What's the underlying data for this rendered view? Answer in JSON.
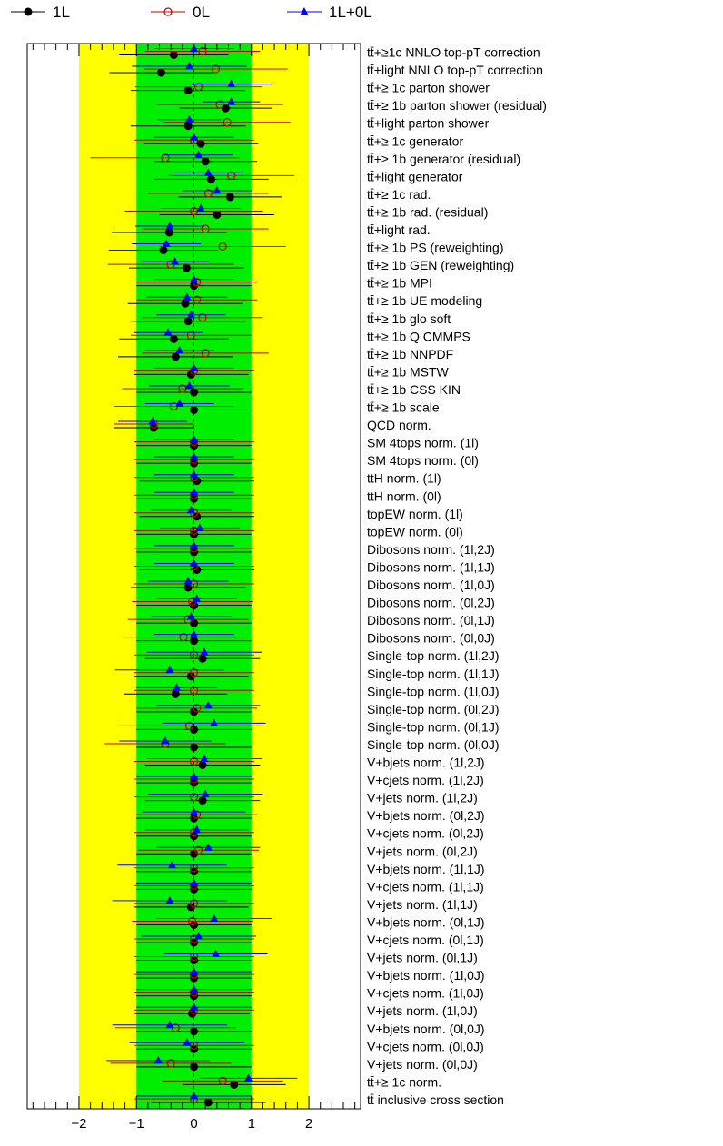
{
  "chart_data": {
    "type": "scatter",
    "title": "",
    "xlabel": "",
    "ylabel": "",
    "xlim": [
      -2.9,
      2.9
    ],
    "x_ticks": [
      -2,
      -1,
      0,
      1,
      2
    ],
    "x_tick_labels": [
      "−2",
      "−1",
      "0",
      "1",
      "2"
    ],
    "grid": false,
    "bands": [
      {
        "name": "±2σ",
        "range": [
          -2,
          2
        ],
        "color": "#ffff00"
      },
      {
        "name": "±1σ",
        "range": [
          -1,
          1
        ],
        "color": "#00ee00"
      }
    ],
    "legend": {
      "placement": "top",
      "entries": [
        "1L",
        "0L",
        "1L+0L"
      ]
    },
    "categories": [
      "tt̄+≥1c NNLO top-pT correction",
      "tt̄+light NNLO top-pT correction",
      "tt̄+≥ 1c parton shower",
      "tt̄+≥ 1b parton shower (residual)",
      "tt̄+light parton shower",
      "tt̄+≥ 1c generator",
      "tt̄+≥ 1b generator (residual)",
      "tt̄+light generator",
      "tt̄+≥ 1c rad.",
      "tt̄+≥ 1b rad. (residual)",
      "tt̄+light rad.",
      "tt̄+≥ 1b PS (reweighting)",
      "tt̄+≥ 1b GEN (reweighting)",
      "tt̄+≥ 1b MPI",
      "tt̄+≥ 1b UE modeling",
      "tt̄+≥ 1b glo soft",
      "tt̄+≥ 1b Q CMMPS",
      "tt̄+≥ 1b NNPDF",
      "tt̄+≥ 1b MSTW",
      "tt̄+≥ 1b CSS KIN",
      "tt̄+≥ 1b scale",
      "QCD norm.",
      "SM 4tops norm. (1l)",
      "SM 4tops norm. (0l)",
      "ttH norm. (1l)",
      "ttH norm. (0l)",
      "topEW norm. (1l)",
      "topEW norm. (0l)",
      "Dibosons norm. (1l,2J)",
      "Dibosons norm. (1l,1J)",
      "Dibosons norm. (1l,0J)",
      "Dibosons norm. (0l,2J)",
      "Dibosons norm. (0l,1J)",
      "Dibosons norm. (0l,0J)",
      "Single-top norm. (1l,2J)",
      "Single-top norm. (1l,1J)",
      "Single-top norm. (1l,0J)",
      "Single-top norm. (0l,2J)",
      "Single-top norm. (0l,1J)",
      "Single-top norm. (0l,0J)",
      "V+bjets norm. (1l,2J)",
      "V+cjets norm. (1l,2J)",
      "V+jets norm. (1l,2J)",
      "V+bjets norm. (0l,2J)",
      "V+cjets norm. (0l,2J)",
      "V+jets norm. (0l,2J)",
      "V+bjets norm. (1l,1J)",
      "V+cjets norm. (1l,1J)",
      "V+jets norm. (1l,1J)",
      "V+bjets norm. (0l,1J)",
      "V+cjets norm. (0l,1J)",
      "V+jets norm. (0l,1J)",
      "V+bjets norm. (1l,0J)",
      "V+cjets norm. (1l,0J)",
      "V+jets norm. (1l,0J)",
      "V+bjets norm. (0l,0J)",
      "V+cjets norm. (0l,0J)",
      "V+jets norm. (0l,0J)",
      "tt̄+≥ 1c norm.",
      "tt̄ inclusive cross section"
    ],
    "series": [
      {
        "name": "1L",
        "marker": "filled-circle",
        "color": "#000000",
        "values": [
          -0.35,
          -0.57,
          -0.1,
          0.55,
          -0.1,
          0.12,
          0.2,
          0.3,
          0.63,
          0.4,
          -0.43,
          -0.53,
          -0.13,
          0.0,
          -0.15,
          -0.1,
          -0.35,
          -0.32,
          -0.05,
          0.0,
          0.0,
          -0.7,
          0.0,
          0.0,
          0.05,
          0.0,
          0.05,
          0.0,
          0.0,
          0.05,
          -0.1,
          0.0,
          0.0,
          0.0,
          0.15,
          -0.05,
          -0.32,
          0.0,
          0.0,
          0.0,
          0.15,
          0.0,
          0.15,
          0.0,
          0.0,
          0.0,
          0.0,
          0.0,
          -0.05,
          0.0,
          0.0,
          0.0,
          0.0,
          0.0,
          -0.03,
          0.0,
          0.0,
          0.0,
          0.7,
          0.25
        ],
        "errors": [
          0.95,
          0.9,
          1.0,
          0.8,
          1.0,
          1.0,
          0.9,
          1.0,
          0.9,
          1.0,
          1.0,
          0.95,
          1.0,
          1.0,
          1.0,
          1.0,
          0.95,
          1.0,
          1.0,
          1.0,
          1.0,
          0.7,
          1.0,
          1.0,
          1.0,
          1.0,
          1.0,
          1.0,
          1.0,
          1.0,
          1.0,
          1.0,
          1.0,
          1.0,
          1.0,
          1.0,
          0.9,
          1.0,
          1.0,
          1.0,
          1.0,
          1.0,
          1.0,
          1.0,
          1.0,
          1.0,
          1.0,
          1.0,
          1.0,
          1.0,
          1.0,
          1.0,
          1.0,
          1.0,
          1.0,
          1.0,
          1.0,
          1.0,
          0.9,
          1.0
        ]
      },
      {
        "name": "0L",
        "marker": "open-circle",
        "color": "#cc0000",
        "values": [
          0.15,
          0.38,
          0.08,
          0.45,
          0.58,
          0.0,
          -0.5,
          0.65,
          0.25,
          0.0,
          0.2,
          0.5,
          -0.4,
          0.05,
          0.05,
          0.15,
          -0.05,
          0.2,
          0.0,
          -0.2,
          -0.35,
          -0.7,
          0.0,
          0.0,
          0.0,
          0.0,
          0.0,
          0.0,
          0.0,
          0.0,
          0.0,
          -0.03,
          -0.1,
          -0.18,
          0.0,
          0.0,
          0.0,
          0.05,
          -0.08,
          -0.5,
          0.0,
          0.0,
          0.0,
          0.05,
          0.0,
          0.08,
          0.0,
          0.0,
          0.0,
          -0.03,
          0.0,
          0.0,
          0.0,
          0.0,
          0.0,
          -0.32,
          0.0,
          -0.4,
          0.5,
          0.0
        ],
        "errors": [
          1.0,
          1.25,
          1.1,
          1.1,
          1.1,
          1.05,
          1.3,
          1.1,
          1.05,
          1.2,
          1.1,
          1.1,
          1.1,
          1.05,
          1.05,
          1.05,
          1.05,
          1.1,
          1.05,
          1.05,
          1.05,
          0.7,
          1.05,
          1.05,
          1.05,
          1.05,
          1.05,
          1.05,
          1.05,
          1.05,
          1.05,
          1.05,
          1.05,
          1.05,
          1.05,
          1.05,
          1.05,
          1.05,
          1.25,
          1.05,
          1.05,
          1.05,
          1.05,
          1.05,
          1.05,
          1.05,
          1.05,
          1.05,
          1.05,
          1.05,
          1.05,
          1.05,
          1.05,
          1.05,
          1.05,
          1.05,
          1.05,
          1.05,
          1.05,
          1.05
        ]
      },
      {
        "name": "1L+0L",
        "marker": "filled-triangle",
        "color": "#0000ff",
        "values": [
          0.0,
          -0.08,
          0.65,
          0.65,
          -0.08,
          0.0,
          0.08,
          0.25,
          0.4,
          0.12,
          -0.42,
          -0.48,
          -0.33,
          0.0,
          -0.12,
          -0.05,
          -0.45,
          -0.25,
          0.0,
          -0.08,
          -0.25,
          -0.72,
          0.0,
          0.0,
          0.0,
          0.0,
          -0.05,
          0.1,
          0.0,
          0.0,
          -0.1,
          0.05,
          -0.05,
          0.0,
          0.18,
          -0.42,
          -0.3,
          0.25,
          0.35,
          -0.5,
          0.18,
          0.0,
          0.2,
          0.0,
          0.05,
          0.25,
          -0.38,
          0.0,
          -0.42,
          0.35,
          0.08,
          0.38,
          0.0,
          0.0,
          0.0,
          -0.42,
          -0.12,
          -0.62,
          0.95,
          0.0
        ],
        "errors": [
          0.7,
          1.0,
          0.7,
          0.5,
          0.55,
          0.7,
          0.6,
          0.6,
          0.6,
          0.7,
          0.6,
          0.6,
          0.6,
          0.7,
          0.7,
          0.6,
          0.6,
          0.6,
          0.7,
          0.7,
          0.6,
          0.6,
          0.7,
          0.7,
          0.7,
          0.7,
          0.7,
          0.7,
          0.7,
          0.7,
          0.7,
          0.7,
          0.7,
          0.7,
          1.0,
          0.95,
          0.7,
          0.9,
          0.9,
          0.8,
          1.0,
          1.0,
          1.0,
          0.9,
          0.9,
          0.9,
          0.95,
          1.0,
          1.0,
          1.0,
          1.0,
          0.9,
          1.0,
          1.0,
          1.0,
          1.0,
          1.0,
          0.9,
          0.85,
          1.0
        ]
      }
    ]
  }
}
